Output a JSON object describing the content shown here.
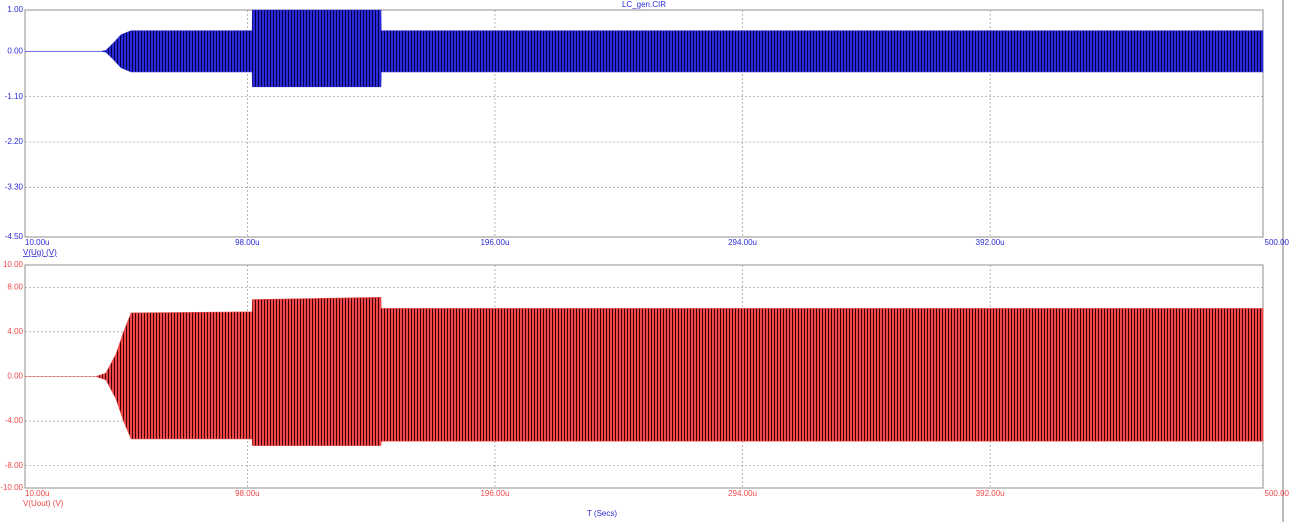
{
  "chart_data": [
    {
      "type": "envelope",
      "title": "LC_gen.CIR",
      "xlim": [
        10,
        500
      ],
      "xticks": [
        {
          "value": 10,
          "label": "10.00u"
        },
        {
          "value": 98,
          "label": "98.00u"
        },
        {
          "value": 196,
          "label": "196.00u"
        },
        {
          "value": 294,
          "label": "294.00u"
        },
        {
          "value": 392,
          "label": "392.00u"
        },
        {
          "value": 500,
          "label": "500.00u"
        }
      ],
      "ylim": [
        -4.5,
        1.0
      ],
      "yticks": [
        {
          "value": 1.0,
          "label": "1.00"
        },
        {
          "value": 0,
          "label": "0.00"
        },
        {
          "value": -1.1,
          "label": "-1.10"
        },
        {
          "value": -2.2,
          "label": "-2.20"
        },
        {
          "value": -3.3,
          "label": "-3.30"
        },
        {
          "value": -4.5,
          "label": "-4.50"
        }
      ],
      "grid": true,
      "series": [
        {
          "name": "V(Ug) (V)",
          "color": "#2a2ad8",
          "x": [
            10,
            40,
            42,
            45,
            48,
            52,
            99.9,
            100,
            150.9,
            151,
            500
          ],
          "max": [
            0,
            0,
            0.02,
            0.2,
            0.4,
            0.5,
            0.5,
            1.0,
            1.0,
            0.5,
            0.5
          ],
          "min": [
            0,
            0,
            -0.02,
            -0.2,
            -0.4,
            -0.5,
            -0.5,
            -0.86,
            -0.86,
            -0.5,
            -0.5
          ]
        }
      ]
    },
    {
      "type": "envelope",
      "xlabel": "T (Secs)",
      "xlim": [
        10,
        500
      ],
      "xticks": [
        {
          "value": 10,
          "label": "10.00u"
        },
        {
          "value": 98,
          "label": "98.00u"
        },
        {
          "value": 196,
          "label": "196.00u"
        },
        {
          "value": 294,
          "label": "294.00u"
        },
        {
          "value": 392,
          "label": "392.00u"
        },
        {
          "value": 500,
          "label": "500.00u"
        }
      ],
      "ylim": [
        -10,
        10
      ],
      "yticks": [
        {
          "value": 10,
          "label": "10.00"
        },
        {
          "value": 8,
          "label": "8.00"
        },
        {
          "value": 4,
          "label": "4.00"
        },
        {
          "value": 0,
          "label": "0.00"
        },
        {
          "value": -4,
          "label": "-4.00"
        },
        {
          "value": -8,
          "label": "-8.00"
        },
        {
          "value": -10,
          "label": "-10.00"
        }
      ],
      "grid": true,
      "series": [
        {
          "name": "V(Uout) (V)",
          "color": "#f04848",
          "x": [
            10,
            38,
            42,
            46,
            49,
            52,
            99.9,
            100,
            150.9,
            151,
            500
          ],
          "max": [
            0,
            0,
            0.3,
            2,
            4,
            5.7,
            5.8,
            6.9,
            7.1,
            6.1,
            6.1
          ],
          "min": [
            0,
            0,
            -0.3,
            -2,
            -4,
            -5.6,
            -5.6,
            -6.2,
            -6.2,
            -5.8,
            -5.8
          ]
        }
      ]
    }
  ]
}
